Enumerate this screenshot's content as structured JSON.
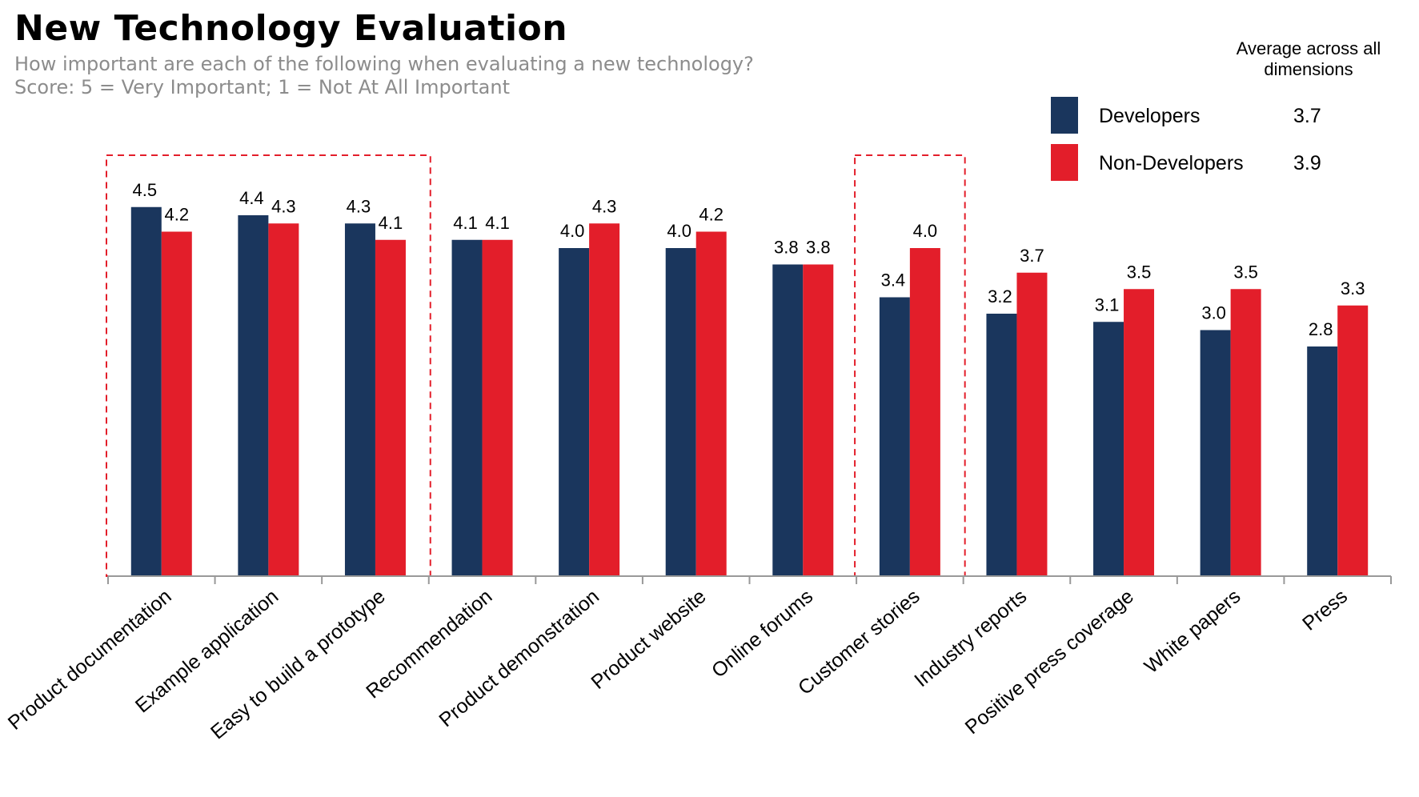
{
  "header": {
    "title": "New Technology Evaluation",
    "subtitle_line1": "How important are each of the following when evaluating a new technology?",
    "subtitle_line2": "Score: 5 = Very Important; 1 = Not At All Important"
  },
  "legend": {
    "average_header": "Average across all dimensions",
    "items": [
      {
        "label": "Developers",
        "average": "3.7",
        "color": "#1a365d"
      },
      {
        "label": "Non-Developers",
        "average": "3.9",
        "color": "#e31e2a"
      }
    ]
  },
  "chart_data": {
    "type": "bar",
    "title": "New Technology Evaluation",
    "categories": [
      "Product documentation",
      "Example application",
      "Easy to build a prototype",
      "Recommendation",
      "Product demonstration",
      "Product website",
      "Online forums",
      "Customer stories",
      "Industry reports",
      "Positive press coverage",
      "White papers",
      "Press"
    ],
    "series": [
      {
        "name": "Developers",
        "color": "#1a365d",
        "values": [
          4.5,
          4.4,
          4.3,
          4.1,
          4.0,
          4.0,
          3.8,
          3.4,
          3.2,
          3.1,
          3.0,
          2.8
        ]
      },
      {
        "name": "Non-Developers",
        "color": "#e31e2a",
        "values": [
          4.2,
          4.3,
          4.1,
          4.1,
          4.3,
          4.2,
          3.8,
          4.0,
          3.7,
          3.5,
          3.5,
          3.3
        ]
      }
    ],
    "highlight_groups": [
      [
        0,
        2
      ],
      [
        7,
        7
      ]
    ],
    "highlight_color": "#e31e2a",
    "grid": false,
    "legend_position": "top-right"
  }
}
